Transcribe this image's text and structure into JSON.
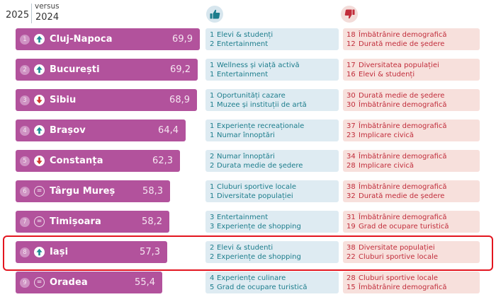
{
  "header": {
    "current_year": "2025",
    "versus_label": "versus",
    "previous_year": "2024",
    "positive_icon": "thumbs-up-icon",
    "negative_icon": "thumbs-down-icon"
  },
  "colors": {
    "bar": "#b2529c",
    "positive_text": "#1c7d8c",
    "positive_bg": "#deebf2",
    "negative_text": "#c12d3b",
    "negative_bg": "#f7e0dc",
    "highlight": "#e3151f",
    "trend_up": "#1c8a96",
    "trend_down": "#d0342c"
  },
  "rows": [
    {
      "rank": "1",
      "trend": "up",
      "city": "Cluj-Napoca",
      "score": "69,9",
      "score_value": 69.9,
      "strengths": [
        {
          "n": "1",
          "label": "Elevi & studenți"
        },
        {
          "n": "2",
          "label": "Entertainment"
        }
      ],
      "weaknesses": [
        {
          "n": "18",
          "label": "Îmbătrânire demografică"
        },
        {
          "n": "12",
          "label": "Durată medie de ședere"
        }
      ]
    },
    {
      "rank": "2",
      "trend": "up",
      "city": "București",
      "score": "69,2",
      "score_value": 69.2,
      "strengths": [
        {
          "n": "1",
          "label": "Wellness și viață activă"
        },
        {
          "n": "1",
          "label": "Entertainment"
        }
      ],
      "weaknesses": [
        {
          "n": "17",
          "label": "Diversitatea populației"
        },
        {
          "n": "16",
          "label": "Elevi & studenți"
        }
      ]
    },
    {
      "rank": "3",
      "trend": "down",
      "city": "Sibiu",
      "score": "68,9",
      "score_value": 68.9,
      "strengths": [
        {
          "n": "1",
          "label": "Oportunități cazare"
        },
        {
          "n": "1",
          "label": "Muzee și instituții de artă"
        }
      ],
      "weaknesses": [
        {
          "n": "30",
          "label": "Durată medie de ședere"
        },
        {
          "n": "30",
          "label": "Îmbătrânire demografică"
        }
      ]
    },
    {
      "rank": "4",
      "trend": "up",
      "city": "Brașov",
      "score": "64,4",
      "score_value": 64.4,
      "strengths": [
        {
          "n": "1",
          "label": "Experiențe recreaționale"
        },
        {
          "n": "1",
          "label": "Numar înnoptări"
        }
      ],
      "weaknesses": [
        {
          "n": "37",
          "label": "Îmbătrânire demografică"
        },
        {
          "n": "23",
          "label": "Implicare civică"
        }
      ]
    },
    {
      "rank": "5",
      "trend": "down",
      "city": "Constanța",
      "score": "62,3",
      "score_value": 62.3,
      "strengths": [
        {
          "n": "2",
          "label": "Numar înnoptări"
        },
        {
          "n": "2",
          "label": "Durata medie de ședere"
        }
      ],
      "weaknesses": [
        {
          "n": "34",
          "label": "Îmbătrânire demografică"
        },
        {
          "n": "28",
          "label": "Implicare civică"
        }
      ]
    },
    {
      "rank": "6",
      "trend": "same",
      "city": "Târgu Mureș",
      "score": "58,3",
      "score_value": 58.3,
      "strengths": [
        {
          "n": "1",
          "label": "Cluburi sportive locale"
        },
        {
          "n": "1",
          "label": "Diversitate populației"
        }
      ],
      "weaknesses": [
        {
          "n": "38",
          "label": "Îmbătrânire demografică"
        },
        {
          "n": "32",
          "label": "Durată medie de ședere"
        }
      ]
    },
    {
      "rank": "7",
      "trend": "same",
      "city": "Timișoara",
      "score": "58,2",
      "score_value": 58.2,
      "strengths": [
        {
          "n": "3",
          "label": "Entertainment"
        },
        {
          "n": "3",
          "label": "Experiențe de shopping"
        }
      ],
      "weaknesses": [
        {
          "n": "31",
          "label": "Îmbătrânire demografică"
        },
        {
          "n": "19",
          "label": "Grad de ocupare turistică"
        }
      ]
    },
    {
      "rank": "8",
      "trend": "up",
      "city": "Iași",
      "score": "57,3",
      "score_value": 57.3,
      "highlighted": true,
      "strengths": [
        {
          "n": "2",
          "label": "Elevi & studenti"
        },
        {
          "n": "2",
          "label": "Experiențe de shopping"
        }
      ],
      "weaknesses": [
        {
          "n": "38",
          "label": "Diversitate populației"
        },
        {
          "n": "22",
          "label": "Cluburi sportive locale"
        }
      ]
    },
    {
      "rank": "9",
      "trend": "same",
      "city": "Oradea",
      "score": "55,4",
      "score_value": 55.4,
      "strengths": [
        {
          "n": "4",
          "label": "Experiențe culinare"
        },
        {
          "n": "5",
          "label": "Grad de ocupare turistică"
        }
      ],
      "weaknesses": [
        {
          "n": "28",
          "label": "Cluburi sportive locale"
        },
        {
          "n": "15",
          "label": "Îmbătrânire demografică"
        }
      ]
    }
  ]
}
